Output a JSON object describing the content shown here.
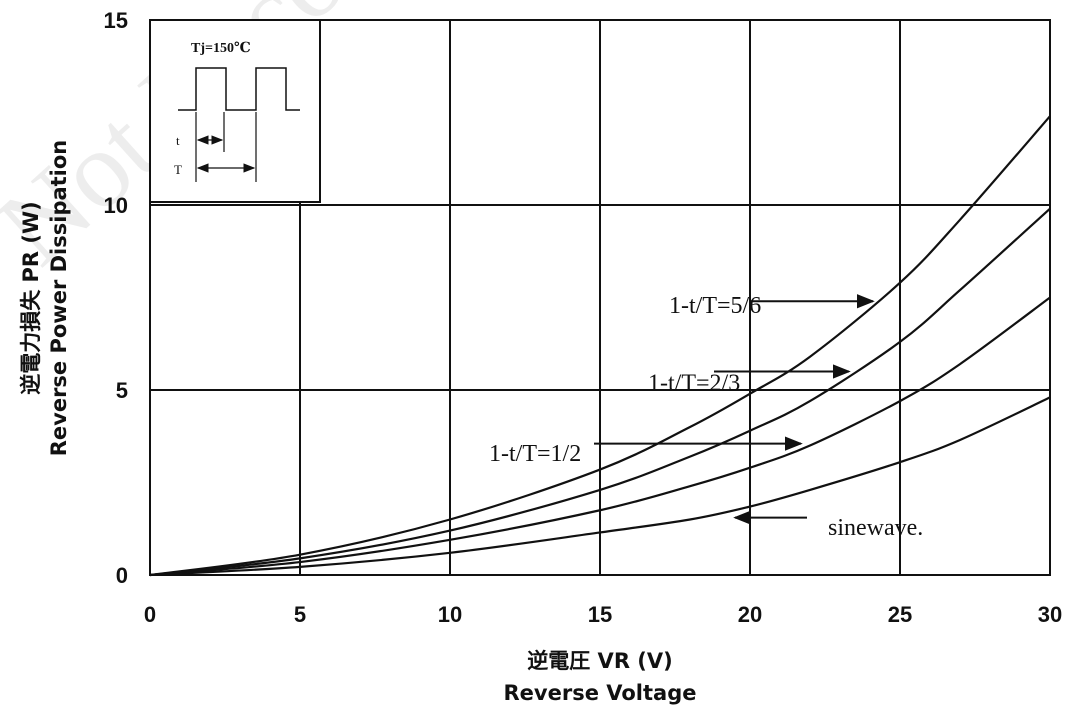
{
  "chart_data": {
    "type": "line",
    "xlabel": "逆電圧 VR (V)",
    "xlabel_en": "Reverse Voltage",
    "ylabel": "逆電力損失 PR (W)",
    "ylabel_en": "Reverse Power Dissipation",
    "xlim": [
      0,
      30
    ],
    "ylim": [
      0,
      15
    ],
    "x_ticks": [
      "0",
      "5",
      "10",
      "15",
      "20",
      "25",
      "30"
    ],
    "y_ticks": [
      "0",
      "5",
      "10",
      "15"
    ],
    "grid": true,
    "series": [
      {
        "name": "1-t/T=5/6",
        "points": [
          [
            0,
            0
          ],
          [
            5,
            0.55
          ],
          [
            10,
            1.5
          ],
          [
            15,
            2.85
          ],
          [
            18,
            4.0
          ],
          [
            20,
            4.9
          ],
          [
            22,
            5.9
          ],
          [
            25,
            7.9
          ],
          [
            27,
            9.6
          ],
          [
            30,
            12.4
          ]
        ]
      },
      {
        "name": "1-t/T=2/3",
        "points": [
          [
            0,
            0
          ],
          [
            5,
            0.45
          ],
          [
            10,
            1.2
          ],
          [
            15,
            2.3
          ],
          [
            18,
            3.2
          ],
          [
            20,
            3.9
          ],
          [
            22,
            4.7
          ],
          [
            25,
            6.3
          ],
          [
            27,
            7.7
          ],
          [
            30,
            9.9
          ]
        ]
      },
      {
        "name": "1-t/T=1/2",
        "points": [
          [
            0,
            0
          ],
          [
            5,
            0.35
          ],
          [
            10,
            0.95
          ],
          [
            15,
            1.75
          ],
          [
            18,
            2.4
          ],
          [
            20,
            2.9
          ],
          [
            22,
            3.5
          ],
          [
            25,
            4.7
          ],
          [
            27,
            5.7
          ],
          [
            30,
            7.5
          ]
        ]
      },
      {
        "name": "sinewave.",
        "points": [
          [
            0,
            0
          ],
          [
            5,
            0.22
          ],
          [
            10,
            0.6
          ],
          [
            15,
            1.15
          ],
          [
            18,
            1.5
          ],
          [
            20,
            1.85
          ],
          [
            22,
            2.3
          ],
          [
            25,
            3.05
          ],
          [
            27,
            3.65
          ],
          [
            30,
            4.8
          ]
        ]
      }
    ],
    "annotations": [
      {
        "text": "1-t/T=5/6",
        "label_at": [
          17.3,
          7.3
        ],
        "arrow_from": [
          20,
          7.4
        ],
        "arrow_to": [
          24.1,
          7.4
        ]
      },
      {
        "text": "1-t/T=2/3",
        "label_at": [
          16.6,
          5.2
        ],
        "arrow_from": [
          18.8,
          5.5
        ],
        "arrow_to": [
          23.3,
          5.5
        ]
      },
      {
        "text": "1-t/T=1/2",
        "label_at": [
          11.3,
          3.3
        ],
        "arrow_from": [
          14.8,
          3.55
        ],
        "arrow_to": [
          21.7,
          3.55
        ]
      },
      {
        "text": "sinewave.",
        "label_at": [
          22.6,
          1.3
        ],
        "arrow_from": [
          21.9,
          1.55
        ],
        "arrow_to": [
          19.5,
          1.55
        ]
      }
    ],
    "inset": {
      "title": "Tj=150℃",
      "t_label": "t",
      "T_label": "T"
    },
    "watermark": "Not Recommended"
  }
}
